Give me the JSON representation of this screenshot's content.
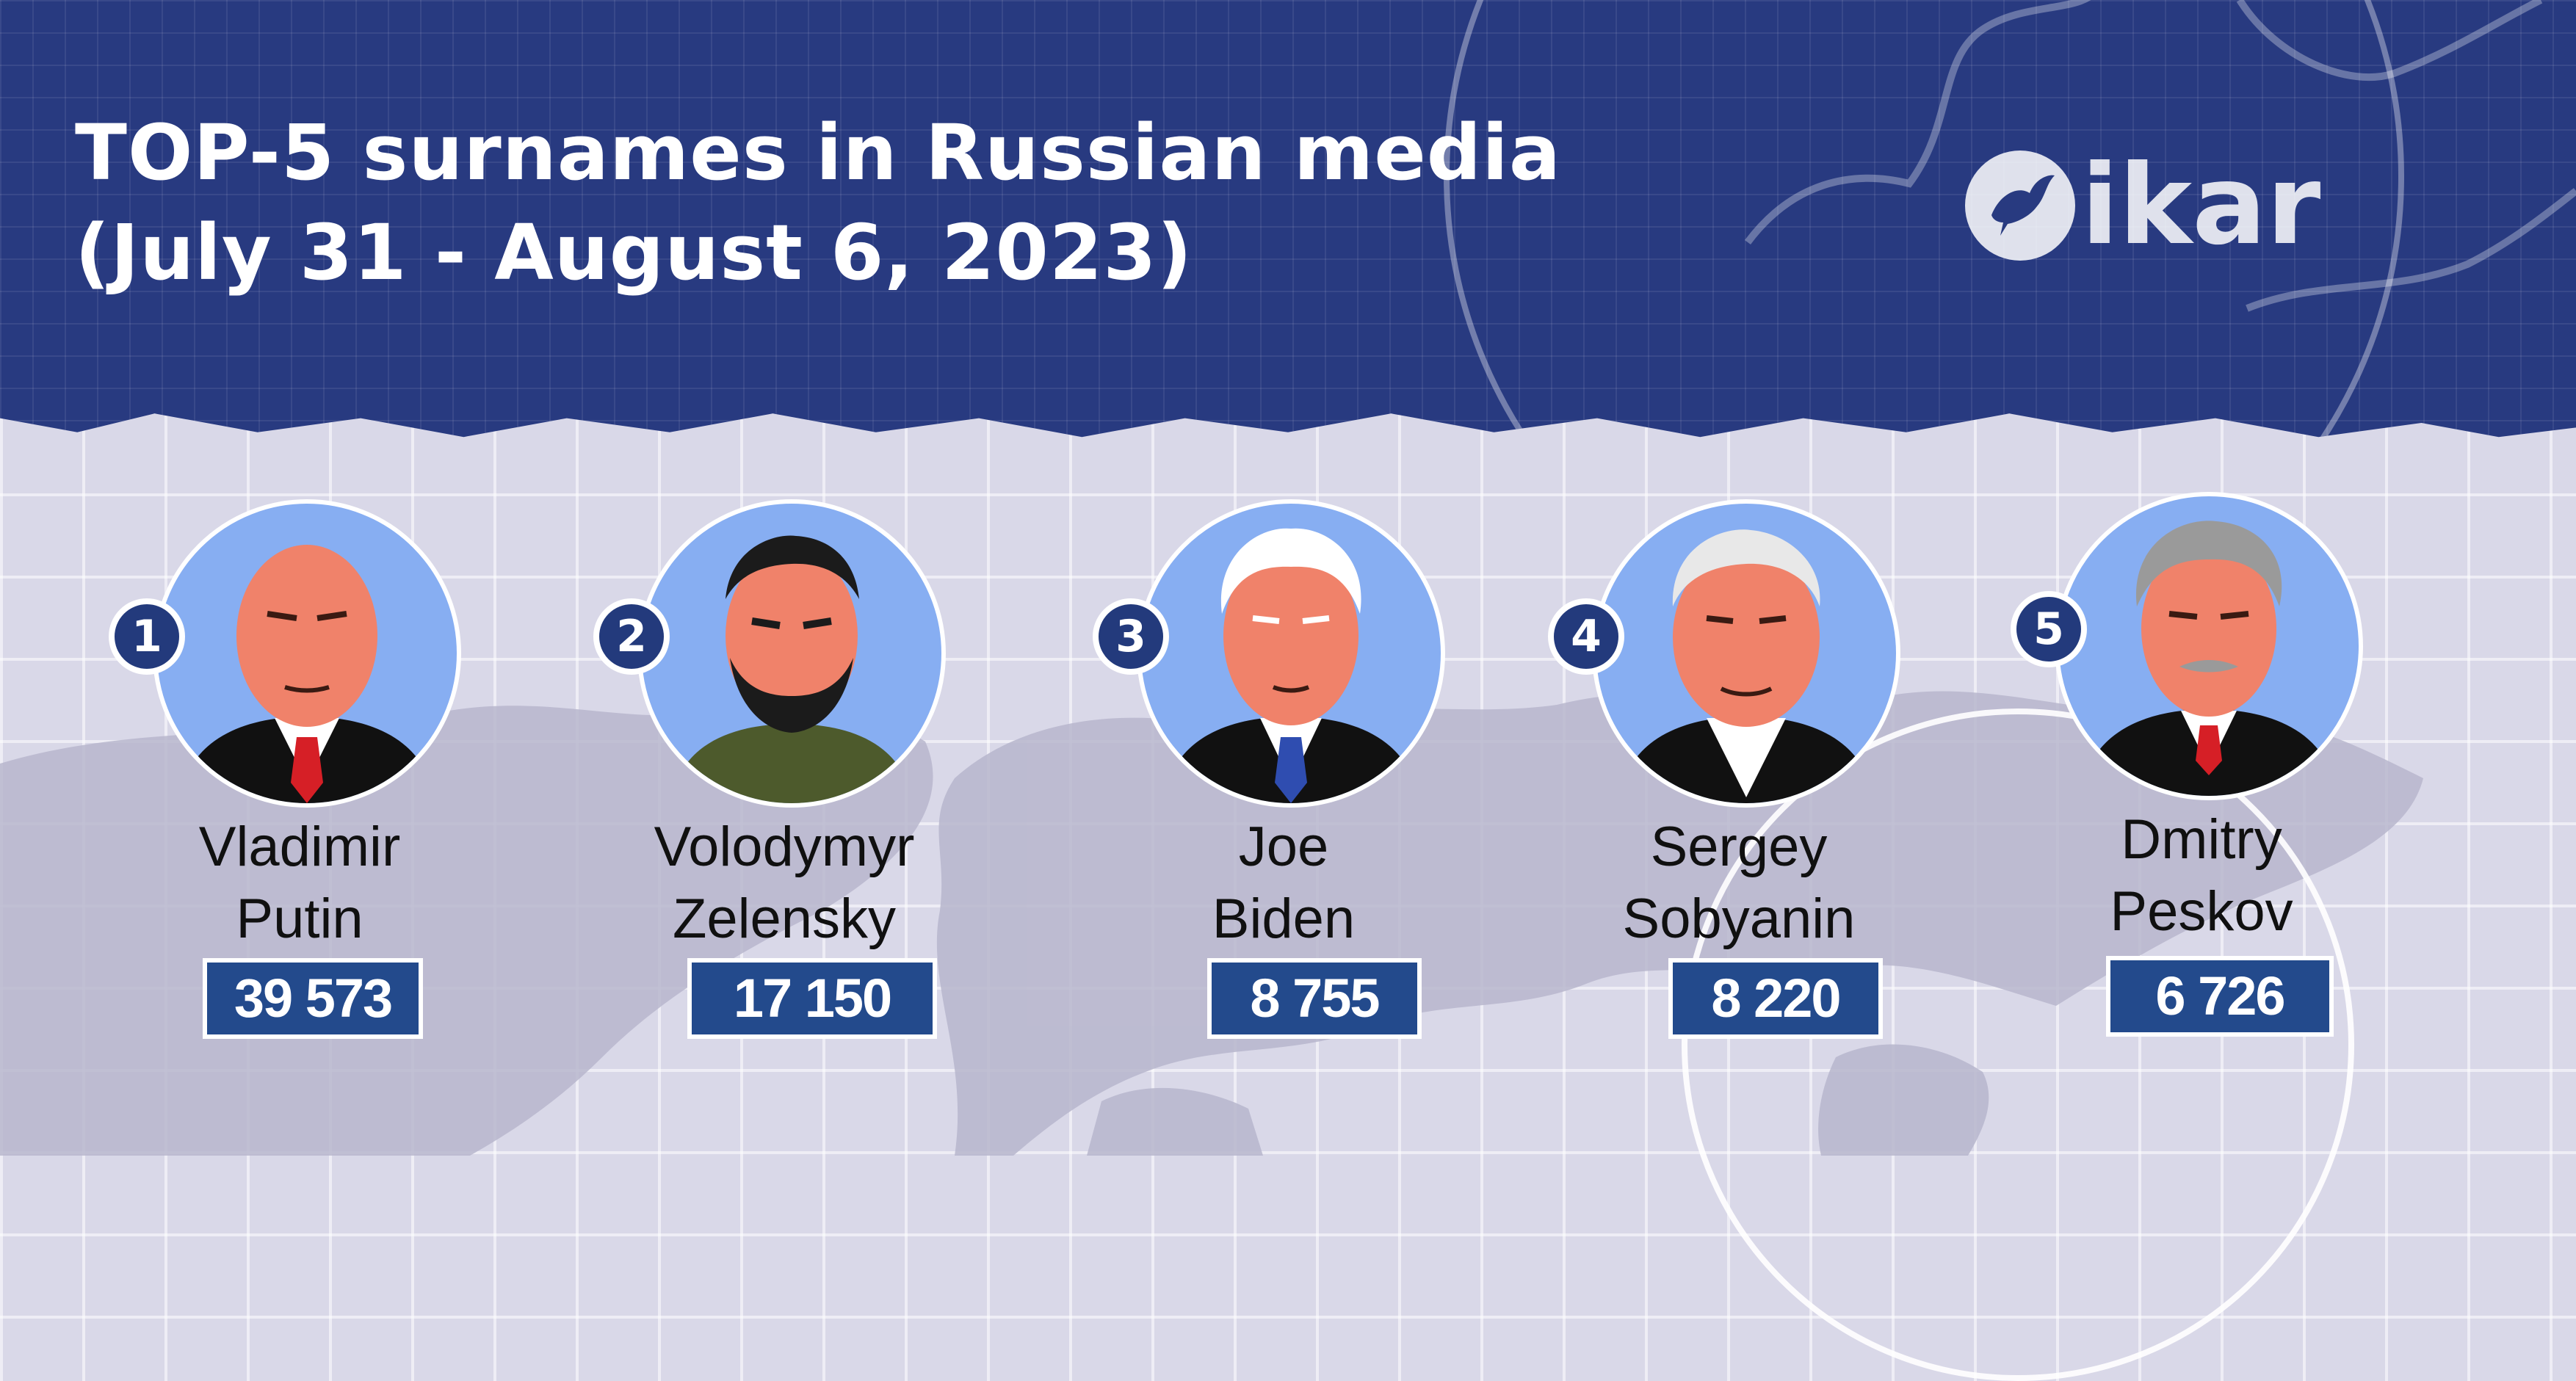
{
  "title": {
    "line1": "TOP-5 surnames in Russian media",
    "line2": "(July 31 - August 6, 2023)"
  },
  "logo": {
    "text": "ikar",
    "icon": "dove-icon"
  },
  "people": [
    {
      "rank": "1",
      "first_name": "Vladimir",
      "last_name": "Putin",
      "count": "39 573",
      "skin": "#f0826a",
      "hair": "#f0826a",
      "shirt": "#ffffff",
      "tie": "#d61f26",
      "suit": "#111111"
    },
    {
      "rank": "2",
      "first_name": "Volodymyr",
      "last_name": "Zelensky",
      "count": "17 150",
      "skin": "#f0826a",
      "hair": "#1b1b1b",
      "shirt": "#4d5a2c",
      "tie": "none",
      "suit": "#4d5a2c"
    },
    {
      "rank": "3",
      "first_name": "Joe",
      "last_name": "Biden",
      "count": "8 755",
      "skin": "#f0826a",
      "hair": "#ffffff",
      "shirt": "#ffffff",
      "tie": "#2f4db0",
      "suit": "#111111"
    },
    {
      "rank": "4",
      "first_name": "Sergey",
      "last_name": "Sobyanin",
      "count": "8 220",
      "skin": "#f0826a",
      "hair": "#e8e8e8",
      "shirt": "#ffffff",
      "tie": "none",
      "suit": "#111111"
    },
    {
      "rank": "5",
      "first_name": "Dmitry",
      "last_name": "Peskov",
      "count": "6 726",
      "skin": "#f0826a",
      "hair": "#9a9a9a",
      "shirt": "#ffffff",
      "tie": "#d61f26",
      "suit": "#111111"
    }
  ],
  "colors": {
    "header_bg": "#283a80",
    "badge_bg": "#233a7c",
    "count_bg": "#234a8c",
    "portrait_bg": "#87aef2"
  }
}
